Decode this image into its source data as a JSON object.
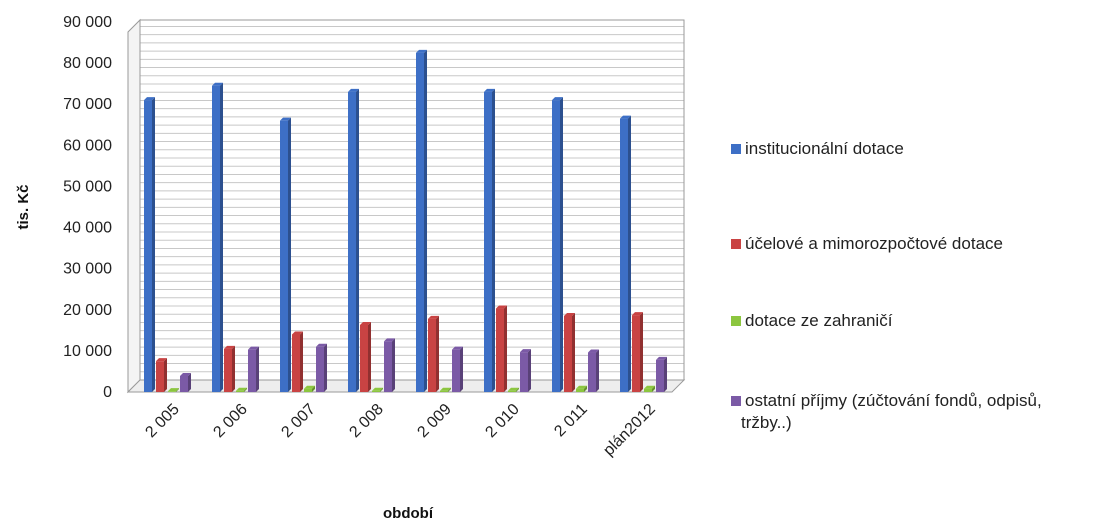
{
  "chart_data": {
    "type": "bar",
    "categories": [
      "2 005",
      "2 006",
      "2 007",
      "2 008",
      "2 009",
      "2 010",
      "2 011",
      "plán2012"
    ],
    "series": [
      {
        "name": "institucionální dotace",
        "values": [
          71000,
          74500,
          66000,
          73000,
          82500,
          73000,
          71000,
          66500
        ],
        "color": "#3d6fc6"
      },
      {
        "name": "účelové a mimorozpočtové dotace",
        "values": [
          7500,
          10500,
          14000,
          16300,
          17800,
          20300,
          18500,
          18700
        ],
        "color": "#c94343"
      },
      {
        "name": "dotace ze zahraničí",
        "values": [
          200,
          300,
          800,
          300,
          300,
          300,
          800,
          800
        ],
        "color": "#8cc63f"
      },
      {
        "name": "ostatní příjmy (zúčtování fondů, odpisů, tržby..)",
        "values": [
          3900,
          10300,
          11000,
          12300,
          10300,
          9700,
          9600,
          7800
        ],
        "color": "#7b5aa6"
      }
    ],
    "title": "",
    "xlabel": "období",
    "ylabel": "tis. Kč",
    "ylim": [
      0,
      90000
    ],
    "yticks": [
      0,
      10000,
      20000,
      30000,
      40000,
      50000,
      60000,
      70000,
      80000,
      90000
    ],
    "ytick_labels": [
      "0",
      "10 000",
      "20 000",
      "30 000",
      "40 000",
      "50 000",
      "60 000",
      "70 000",
      "80 000",
      "90 000"
    ],
    "grid": true,
    "legend_position": "right"
  }
}
